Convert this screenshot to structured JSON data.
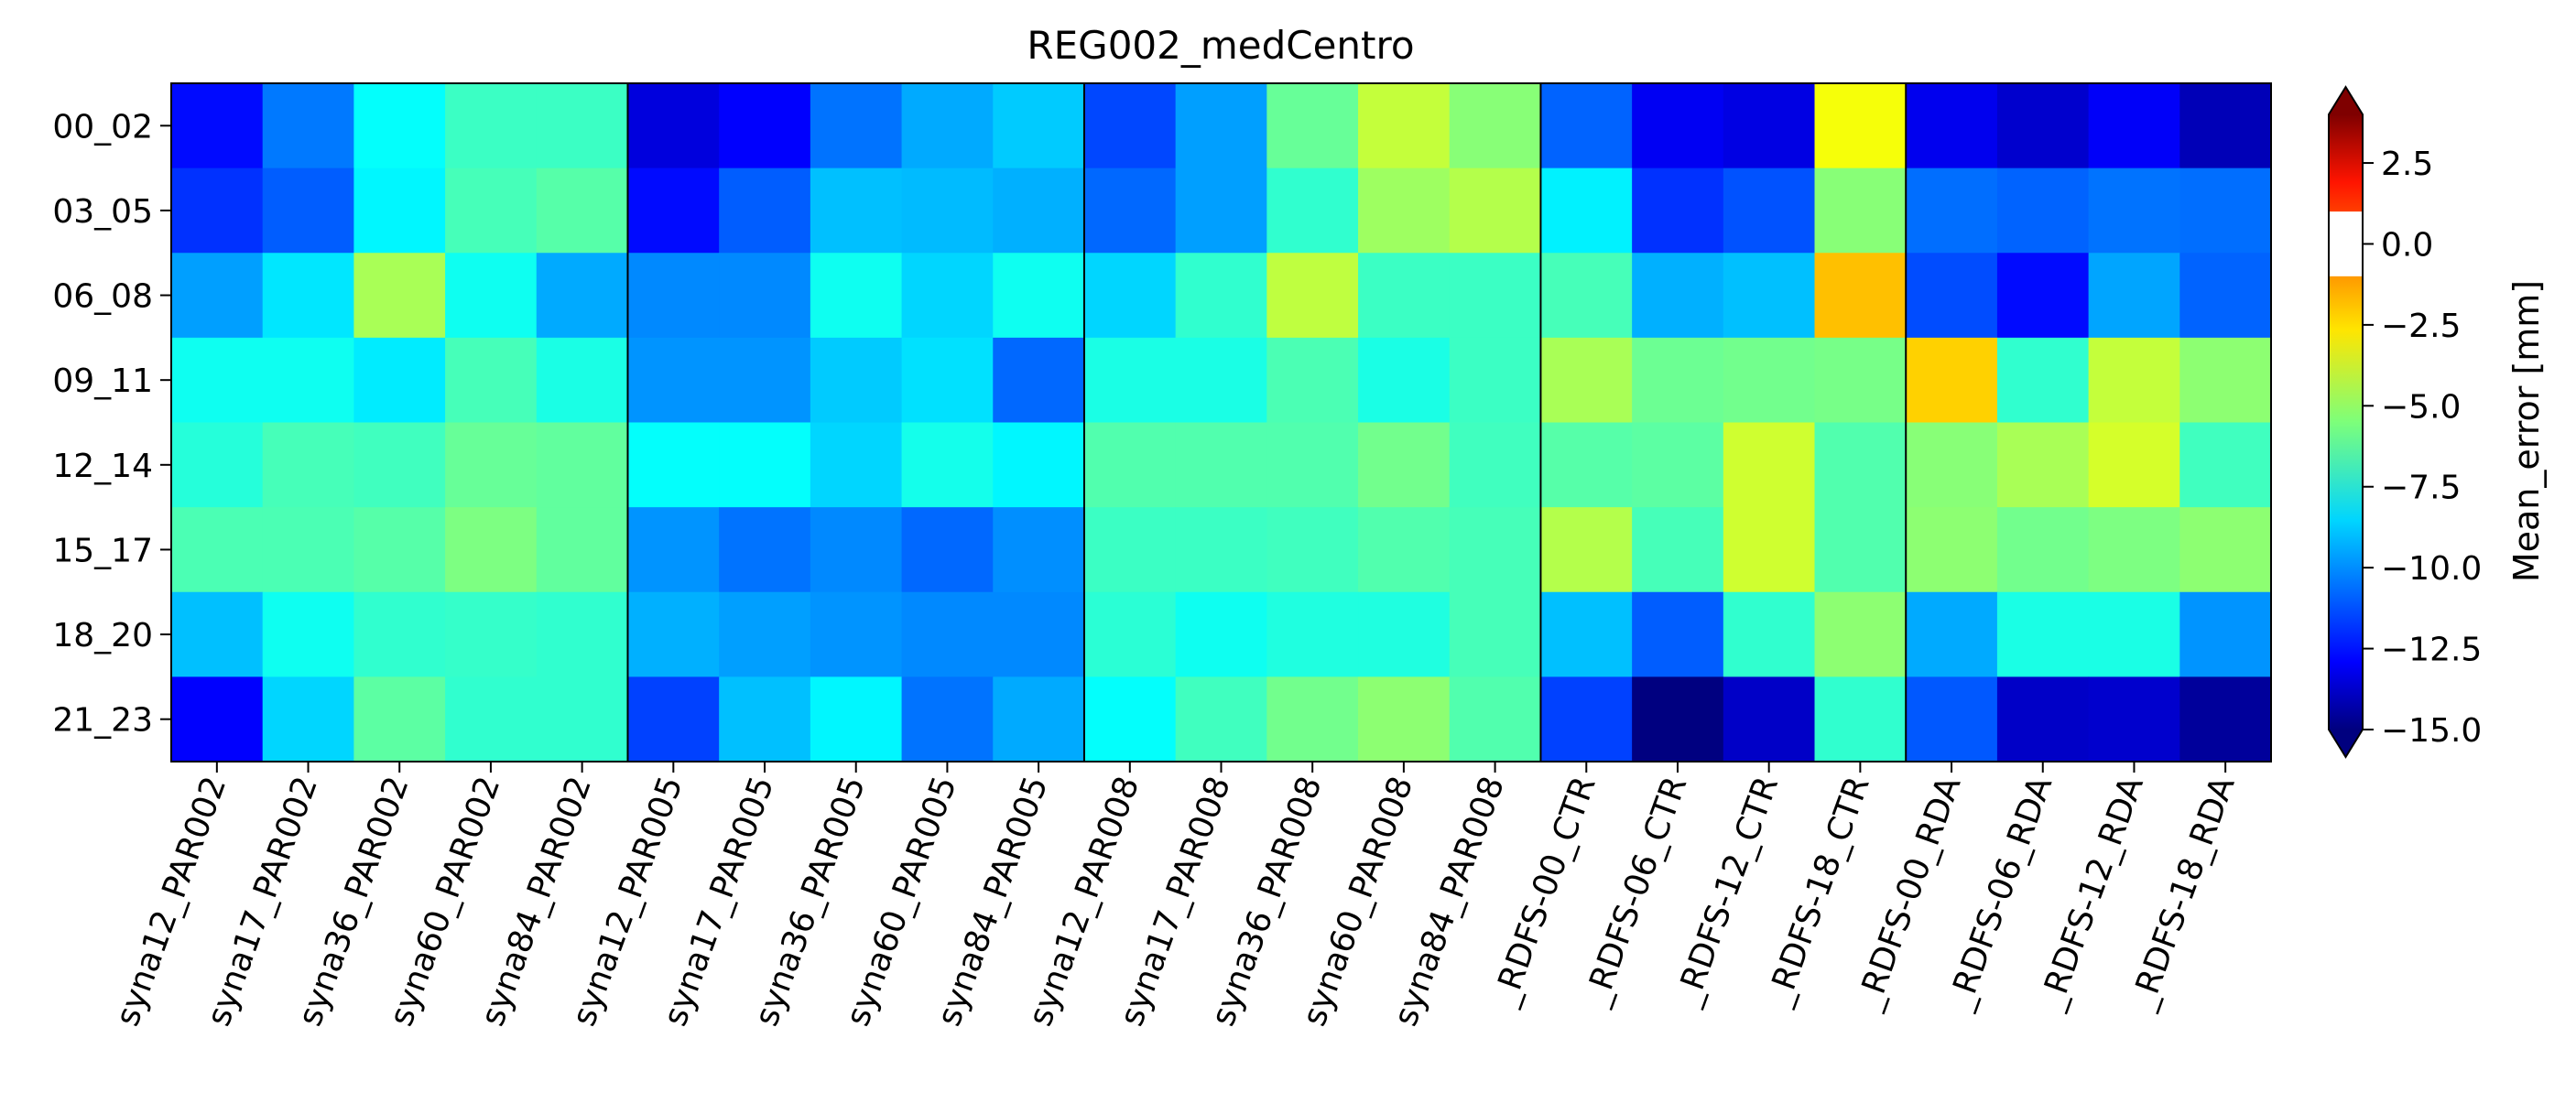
{
  "chart_data": {
    "type": "heatmap",
    "title": "REG002_medCentro",
    "colorbar_label": "Mean_error [mm]",
    "colormap": "jet",
    "vmin": -15.0,
    "vmax": 3.5,
    "colorbar_extend": "both",
    "colorbar_ticks": [
      2.5,
      0.0,
      -2.5,
      -5.0,
      -7.5,
      -10.0,
      -12.5,
      -15.0
    ],
    "colorbar_tick_labels": [
      "2.5",
      "0.0",
      "−2.5",
      "−5.0",
      "−7.5",
      "−10.0",
      "−12.5",
      "−15.0"
    ],
    "colorbar_white_band": [
      -1.0,
      1.0
    ],
    "rows": [
      "00_02",
      "03_05",
      "06_08",
      "09_11",
      "12_14",
      "15_17",
      "18_20",
      "21_23"
    ],
    "columns": [
      "syna12_PAR002",
      "syna17_PAR002",
      "syna36_PAR002",
      "syna60_PAR002",
      "syna84_PAR002",
      "syna12_PAR005",
      "syna17_PAR005",
      "syna36_PAR005",
      "syna60_PAR005",
      "syna84_PAR005",
      "syna12_PAR008",
      "syna17_PAR008",
      "syna36_PAR008",
      "syna60_PAR008",
      "syna84_PAR008",
      "_RDFS-00_CTR",
      "_RDFS-06_CTR",
      "_RDFS-12_CTR",
      "_RDFS-18_CTR",
      "_RDFS-00_RDA",
      "_RDFS-06_RDA",
      "_RDFS-12_RDA",
      "_RDFS-18_RDA"
    ],
    "group_boundaries_after_column": [
      4,
      9,
      14,
      18
    ],
    "values": [
      [
        -12.5,
        -10.5,
        -8.0,
        -7.0,
        -7.0,
        -13.3,
        -12.7,
        -10.6,
        -9.6,
        -9.0,
        -11.4,
        -9.8,
        -6.2,
        -4.5,
        -5.6,
        -10.9,
        -12.9,
        -13.2,
        -3.6,
        -13.0,
        -13.6,
        -12.8,
        -14.0
      ],
      [
        -11.8,
        -11.0,
        -8.2,
        -6.8,
        -6.5,
        -12.5,
        -11.0,
        -9.2,
        -9.3,
        -9.5,
        -10.8,
        -9.8,
        -7.2,
        -5.2,
        -4.8,
        -8.3,
        -11.8,
        -11.2,
        -5.6,
        -10.7,
        -10.9,
        -10.6,
        -10.7
      ],
      [
        -9.8,
        -8.5,
        -5.0,
        -7.8,
        -9.6,
        -10.2,
        -10.2,
        -7.8,
        -8.8,
        -7.8,
        -8.8,
        -7.2,
        -4.6,
        -7.0,
        -7.0,
        -6.8,
        -9.5,
        -9.2,
        -2.3,
        -11.3,
        -12.5,
        -9.7,
        -10.9
      ],
      [
        -7.8,
        -7.8,
        -8.4,
        -6.8,
        -7.6,
        -10.0,
        -10.0,
        -9.0,
        -8.6,
        -10.8,
        -7.6,
        -7.6,
        -6.7,
        -7.6,
        -7.0,
        -5.0,
        -6.1,
        -6.0,
        -5.9,
        -2.6,
        -7.2,
        -4.5,
        -5.5
      ],
      [
        -7.4,
        -6.8,
        -6.9,
        -6.2,
        -6.3,
        -8.0,
        -8.0,
        -8.8,
        -7.7,
        -8.2,
        -6.6,
        -6.6,
        -6.6,
        -6.0,
        -6.9,
        -6.5,
        -6.4,
        -4.3,
        -6.6,
        -5.6,
        -5.0,
        -4.2,
        -6.9
      ],
      [
        -6.7,
        -6.7,
        -6.5,
        -5.8,
        -6.3,
        -10.0,
        -10.6,
        -10.2,
        -10.8,
        -10.1,
        -7.0,
        -7.0,
        -6.9,
        -6.6,
        -6.8,
        -4.8,
        -6.8,
        -4.3,
        -6.6,
        -5.5,
        -6.0,
        -5.8,
        -5.5
      ],
      [
        -9.2,
        -7.8,
        -7.2,
        -7.1,
        -7.2,
        -9.5,
        -9.8,
        -10.0,
        -10.2,
        -10.2,
        -7.3,
        -7.8,
        -7.5,
        -7.5,
        -6.8,
        -9.2,
        -11.0,
        -7.2,
        -5.5,
        -9.6,
        -7.6,
        -7.6,
        -10.0
      ],
      [
        -12.7,
        -8.8,
        -6.4,
        -7.2,
        -7.2,
        -11.5,
        -9.2,
        -8.2,
        -10.6,
        -9.6,
        -8.0,
        -6.9,
        -6.0,
        -5.5,
        -6.6,
        -11.5,
        -15.0,
        -13.7,
        -7.2,
        -11.1,
        -13.7,
        -13.6,
        -14.5
      ]
    ]
  }
}
